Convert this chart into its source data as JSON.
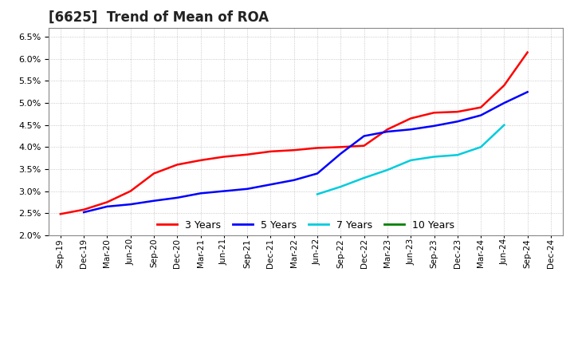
{
  "title": "[6625]  Trend of Mean of ROA",
  "ylim": [
    0.02,
    0.067
  ],
  "yticks": [
    0.02,
    0.025,
    0.03,
    0.035,
    0.04,
    0.045,
    0.05,
    0.055,
    0.06,
    0.065
  ],
  "x_labels": [
    "Sep-19",
    "Dec-19",
    "Mar-20",
    "Jun-20",
    "Sep-20",
    "Dec-20",
    "Mar-21",
    "Jun-21",
    "Sep-21",
    "Dec-21",
    "Mar-22",
    "Jun-22",
    "Sep-22",
    "Dec-22",
    "Mar-23",
    "Jun-23",
    "Sep-23",
    "Dec-23",
    "Mar-24",
    "Jun-24",
    "Sep-24",
    "Dec-24"
  ],
  "y3": [
    0.0248,
    0.0258,
    0.0275,
    0.03,
    0.034,
    0.036,
    0.037,
    0.0378,
    0.0383,
    0.039,
    0.0393,
    0.0398,
    0.04,
    0.0403,
    0.044,
    0.0465,
    0.0478,
    0.048,
    0.049,
    0.054,
    0.0615,
    null
  ],
  "y5": [
    null,
    0.0252,
    0.0265,
    0.027,
    0.0278,
    0.0285,
    0.0295,
    0.03,
    0.0305,
    0.0315,
    0.0325,
    0.034,
    0.0385,
    0.0425,
    0.0435,
    0.044,
    0.0448,
    0.0458,
    0.0472,
    0.05,
    0.0525,
    null
  ],
  "y7": [
    null,
    null,
    null,
    null,
    null,
    null,
    null,
    null,
    null,
    null,
    null,
    0.0293,
    0.031,
    0.033,
    0.0348,
    0.037,
    0.0378,
    0.0382,
    0.04,
    0.045,
    null,
    null
  ],
  "y10": [
    null,
    null,
    null,
    null,
    null,
    null,
    null,
    null,
    null,
    null,
    null,
    null,
    null,
    null,
    null,
    null,
    null,
    null,
    null,
    null,
    null,
    null
  ],
  "colors": {
    "3 Years": "#FF0000",
    "5 Years": "#0000FF",
    "7 Years": "#00CCDD",
    "10 Years": "#008000"
  },
  "legend_entries": [
    "3 Years",
    "5 Years",
    "7 Years",
    "10 Years"
  ],
  "legend_colors": [
    "#FF0000",
    "#0000FF",
    "#00CCDD",
    "#008000"
  ],
  "background_color": "#ffffff",
  "grid_color": "#bbbbbb",
  "title_fontsize": 12,
  "linewidth": 1.8
}
